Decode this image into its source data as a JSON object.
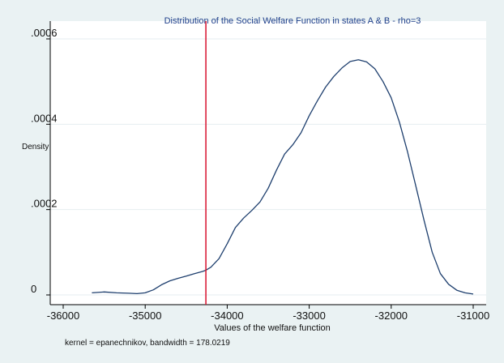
{
  "chart_data": {
    "type": "line",
    "title": "Distribution of the Social Welfare Function in states A & B - rho=3",
    "xlabel": "Values of the welfare function",
    "ylabel": "Density",
    "note": "kernel = epanechnikov, bandwidth = 178.0219",
    "xlim": [
      -36000,
      -31000
    ],
    "ylim": [
      0,
      0.0006
    ],
    "x_ticks": [
      -36000,
      -35000,
      -34000,
      -33000,
      -32000,
      -31000
    ],
    "x_tick_labels": [
      "-36000",
      "-35000",
      "-34000",
      "-33000",
      "-32000",
      "-31000"
    ],
    "y_ticks": [
      0,
      0.0002,
      0.0004,
      0.0006
    ],
    "y_tick_labels": [
      "0",
      ".0002",
      ".0004",
      ".0006"
    ],
    "grid": true,
    "line_color": "#1e3f6e",
    "vline": {
      "x": -34260,
      "color": "#d8102c"
    },
    "series": [
      {
        "x": [
          -35650,
          -35500,
          -35350,
          -35200,
          -35100,
          -35000,
          -34900,
          -34800,
          -34700,
          -34600,
          -34500,
          -34400,
          -34300,
          -34260,
          -34200,
          -34100,
          -34000,
          -33900,
          -33800,
          -33700,
          -33600,
          -33500,
          -33400,
          -33300,
          -33200,
          -33100,
          -33000,
          -32900,
          -32800,
          -32700,
          -32600,
          -32500,
          -32400,
          -32300,
          -32200,
          -32100,
          -32000,
          -31900,
          -31800,
          -31700,
          -31600,
          -31500,
          -31400,
          -31300,
          -31200,
          -31100,
          -31000
        ],
        "y": [
          5e-06,
          7e-06,
          5e-06,
          4e-06,
          3e-06,
          5e-06,
          1.2e-05,
          2.4e-05,
          3.3e-05,
          3.9e-05,
          4.4e-05,
          5e-05,
          5.5e-05,
          5.8e-05,
          6.5e-05,
          8.5e-05,
          0.00012,
          0.000158,
          0.00018,
          0.000198,
          0.000218,
          0.00025,
          0.000292,
          0.00033,
          0.000352,
          0.00038,
          0.00042,
          0.000455,
          0.000487,
          0.000512,
          0.000532,
          0.000547,
          0.000551,
          0.000546,
          0.00053,
          0.0005,
          0.000462,
          0.000405,
          0.000335,
          0.000255,
          0.000175,
          0.0001,
          5e-05,
          2.5e-05,
          1.1e-05,
          5e-06,
          2e-06
        ]
      }
    ]
  }
}
